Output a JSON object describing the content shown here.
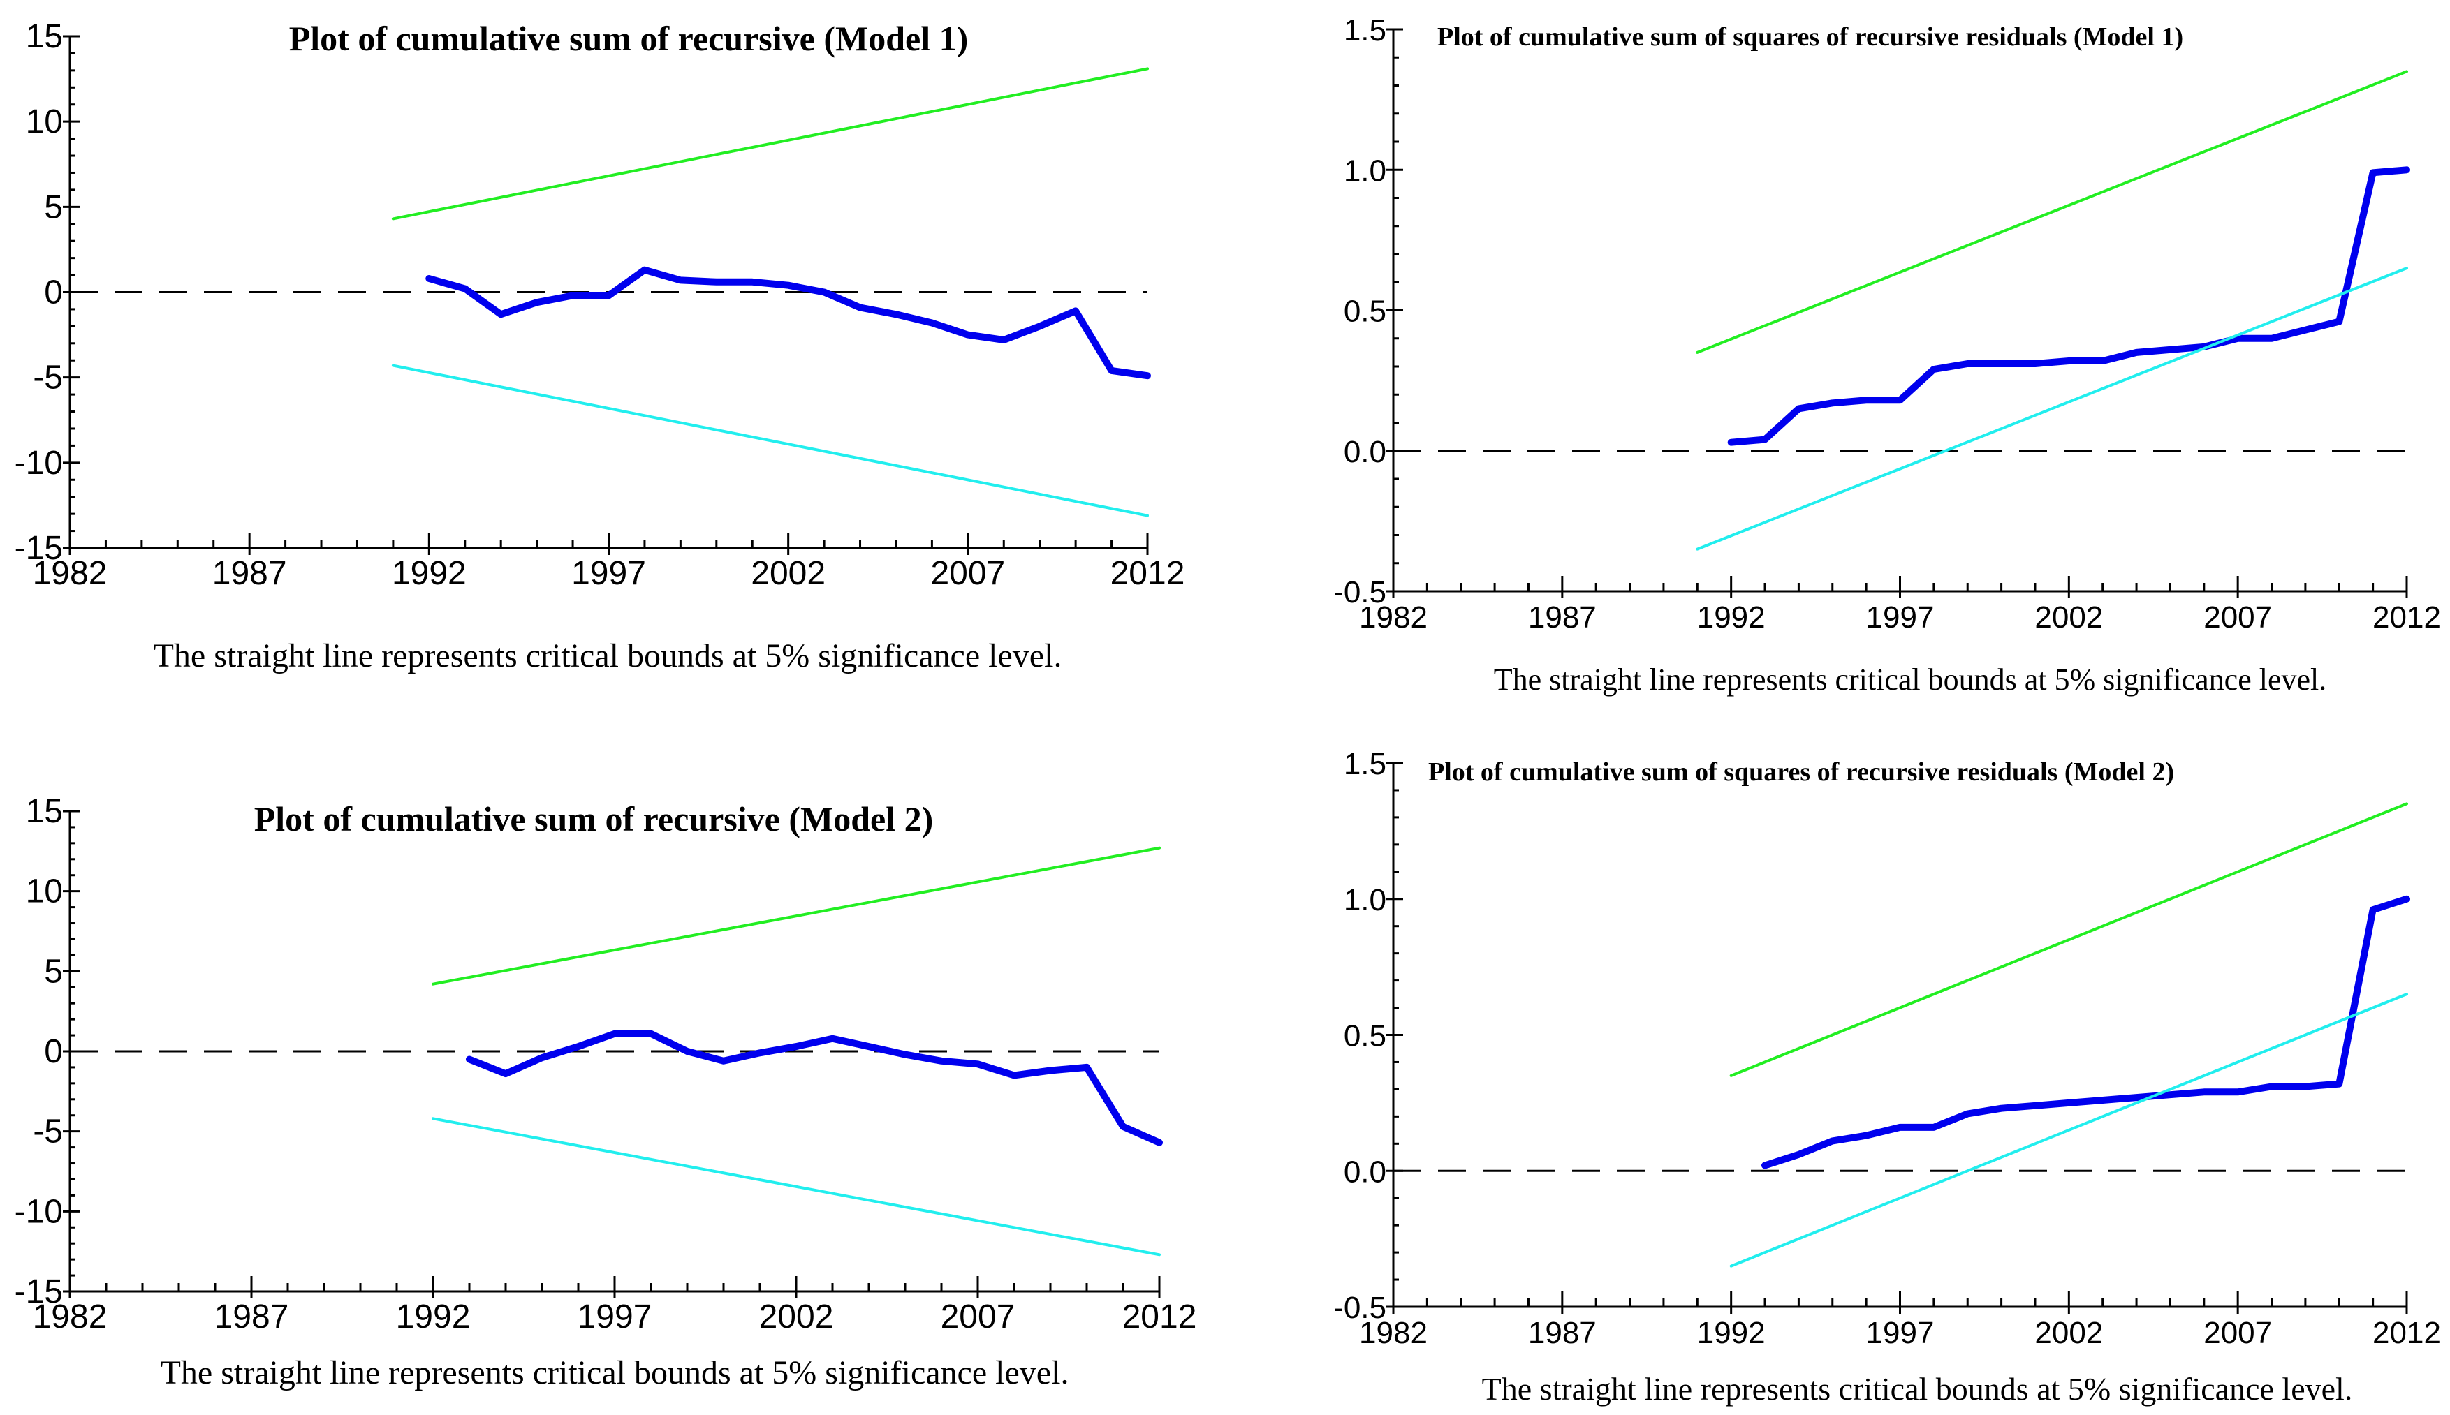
{
  "figure": {
    "caption": "The straight line represents critical bounds at 5% significance level.",
    "colors": {
      "statistic": "#0000ee",
      "upper_bound": "#22ee22",
      "lower_bound": "#22eeee",
      "axis": "#000000",
      "background": "#ffffff"
    }
  },
  "chart_data": [
    {
      "id": "cusum_model1",
      "type": "line",
      "title": "Plot of cumulative sum of recursive (Model 1)",
      "caption": "The straight line represents critical bounds at 5% significance level.",
      "xlabel": "",
      "ylabel": "",
      "xlim": [
        1982,
        2012
      ],
      "ylim": [
        -15,
        15
      ],
      "x_ticks": [
        1982,
        1987,
        1992,
        1997,
        2002,
        2007,
        2012
      ],
      "x_tick_labels": [
        "1982",
        "1987",
        "1992",
        "1997",
        "2002",
        "2007",
        "2012"
      ],
      "y_ticks": [
        -15,
        -10,
        -5,
        0,
        5,
        10,
        15
      ],
      "y_tick_labels": [
        "-15",
        "-10",
        "-5",
        "0",
        "5",
        "10",
        "15"
      ],
      "zero_line": true,
      "series": [
        {
          "name": "CUSUM",
          "role": "statistic",
          "color": "#0000ee",
          "x": [
            1992,
            1993,
            1994,
            1995,
            1996,
            1997,
            1998,
            1999,
            2000,
            2001,
            2002,
            2003,
            2004,
            2005,
            2006,
            2007,
            2008,
            2009,
            2010,
            2011,
            2012
          ],
          "y": [
            0.8,
            0.2,
            -1.3,
            -0.6,
            -0.2,
            -0.2,
            1.3,
            0.7,
            0.6,
            0.6,
            0.4,
            0.0,
            -0.9,
            -1.3,
            -1.8,
            -2.5,
            -2.8,
            -2.0,
            -1.1,
            -4.6,
            -4.9
          ]
        },
        {
          "name": "Upper 5% bound",
          "role": "upper",
          "color": "#22ee22",
          "x": [
            1991,
            2012
          ],
          "y": [
            4.3,
            13.1
          ]
        },
        {
          "name": "Lower 5% bound",
          "role": "lower",
          "color": "#22eeee",
          "x": [
            1991,
            2012
          ],
          "y": [
            -4.3,
            -13.1
          ]
        }
      ]
    },
    {
      "id": "cusumsq_model1",
      "type": "line",
      "title": "Plot of cumulative sum of squares of recursive residuals (Model 1)",
      "caption": "The straight line represents critical bounds at 5% significance level.",
      "xlabel": "",
      "ylabel": "",
      "xlim": [
        1982,
        2012
      ],
      "ylim": [
        -0.5,
        1.5
      ],
      "x_ticks": [
        1982,
        1987,
        1992,
        1997,
        2002,
        2007,
        2012
      ],
      "x_tick_labels": [
        "1982",
        "1987",
        "1992",
        "1997",
        "2002",
        "2007",
        "2012"
      ],
      "y_ticks": [
        -0.5,
        0.0,
        0.5,
        1.0,
        1.5
      ],
      "y_tick_labels": [
        "-0.5",
        "0.0",
        "0.5",
        "1.0",
        "1.5"
      ],
      "zero_line": true,
      "series": [
        {
          "name": "CUSUM of squares",
          "role": "statistic",
          "color": "#0000ee",
          "x": [
            1992,
            1993,
            1994,
            1995,
            1996,
            1997,
            1998,
            1999,
            2000,
            2001,
            2002,
            2003,
            2004,
            2005,
            2006,
            2007,
            2008,
            2009,
            2010,
            2011,
            2012
          ],
          "y": [
            0.03,
            0.04,
            0.15,
            0.17,
            0.18,
            0.18,
            0.29,
            0.31,
            0.31,
            0.31,
            0.32,
            0.32,
            0.35,
            0.36,
            0.37,
            0.4,
            0.4,
            0.43,
            0.46,
            0.99,
            1.0
          ]
        },
        {
          "name": "Upper 5% bound",
          "role": "upper",
          "color": "#22ee22",
          "x": [
            1991,
            2012
          ],
          "y": [
            0.35,
            1.35
          ]
        },
        {
          "name": "Lower 5% bound",
          "role": "lower",
          "color": "#22eeee",
          "x": [
            1991,
            2012
          ],
          "y": [
            -0.35,
            0.65
          ]
        }
      ]
    },
    {
      "id": "cusum_model2",
      "type": "line",
      "title": "Plot of cumulative sum of recursive (Model 2)",
      "caption": "The straight line represents critical bounds at 5% significance level.",
      "xlabel": "",
      "ylabel": "",
      "xlim": [
        1982,
        2012
      ],
      "ylim": [
        -15,
        15
      ],
      "x_ticks": [
        1982,
        1987,
        1992,
        1997,
        2002,
        2007,
        2012
      ],
      "x_tick_labels": [
        "1982",
        "1987",
        "1992",
        "1997",
        "2002",
        "2007",
        "2012"
      ],
      "y_ticks": [
        -15,
        -10,
        -5,
        0,
        5,
        10,
        15
      ],
      "y_tick_labels": [
        "-15",
        "-10",
        "-5",
        "0",
        "5",
        "10",
        "15"
      ],
      "zero_line": true,
      "series": [
        {
          "name": "CUSUM",
          "role": "statistic",
          "color": "#0000ee",
          "x": [
            1993,
            1994,
            1995,
            1996,
            1997,
            1998,
            1999,
            2000,
            2001,
            2002,
            2003,
            2004,
            2005,
            2006,
            2007,
            2008,
            2009,
            2010,
            2011,
            2012
          ],
          "y": [
            -0.5,
            -1.4,
            -0.4,
            0.3,
            1.1,
            1.1,
            0.0,
            -0.6,
            -0.1,
            0.3,
            0.8,
            0.3,
            -0.2,
            -0.6,
            -0.8,
            -1.5,
            -1.2,
            -1.0,
            -4.7,
            -5.7
          ]
        },
        {
          "name": "Upper 5% bound",
          "role": "upper",
          "color": "#22ee22",
          "x": [
            1992,
            2012
          ],
          "y": [
            4.2,
            12.7
          ]
        },
        {
          "name": "Lower 5% bound",
          "role": "lower",
          "color": "#22eeee",
          "x": [
            1992,
            2012
          ],
          "y": [
            -4.2,
            -12.7
          ]
        }
      ]
    },
    {
      "id": "cusumsq_model2",
      "type": "line",
      "title": "Plot of cumulative sum of squares of recursive residuals (Model 2)",
      "caption": "The straight line represents critical bounds at 5% significance level.",
      "xlabel": "",
      "ylabel": "",
      "xlim": [
        1982,
        2012
      ],
      "ylim": [
        -0.5,
        1.5
      ],
      "x_ticks": [
        1982,
        1987,
        1992,
        1997,
        2002,
        2007,
        2012
      ],
      "x_tick_labels": [
        "1982",
        "1987",
        "1992",
        "1997",
        "2002",
        "2007",
        "2012"
      ],
      "y_ticks": [
        -0.5,
        0.0,
        0.5,
        1.0,
        1.5
      ],
      "y_tick_labels": [
        "-0.5",
        "0.0",
        "0.5",
        "1.0",
        "1.5"
      ],
      "zero_line": true,
      "series": [
        {
          "name": "CUSUM of squares",
          "role": "statistic",
          "color": "#0000ee",
          "x": [
            1993,
            1994,
            1995,
            1996,
            1997,
            1998,
            1999,
            2000,
            2001,
            2002,
            2003,
            2004,
            2005,
            2006,
            2007,
            2008,
            2009,
            2010,
            2011,
            2012
          ],
          "y": [
            0.02,
            0.06,
            0.11,
            0.13,
            0.16,
            0.16,
            0.21,
            0.23,
            0.24,
            0.25,
            0.26,
            0.27,
            0.28,
            0.29,
            0.29,
            0.31,
            0.31,
            0.32,
            0.96,
            1.0
          ]
        },
        {
          "name": "Upper 5% bound",
          "role": "upper",
          "color": "#22ee22",
          "x": [
            1992,
            2012
          ],
          "y": [
            0.35,
            1.35
          ]
        },
        {
          "name": "Lower 5% bound",
          "role": "lower",
          "color": "#22eeee",
          "x": [
            1992,
            2012
          ],
          "y": [
            -0.35,
            0.65
          ]
        }
      ]
    }
  ]
}
